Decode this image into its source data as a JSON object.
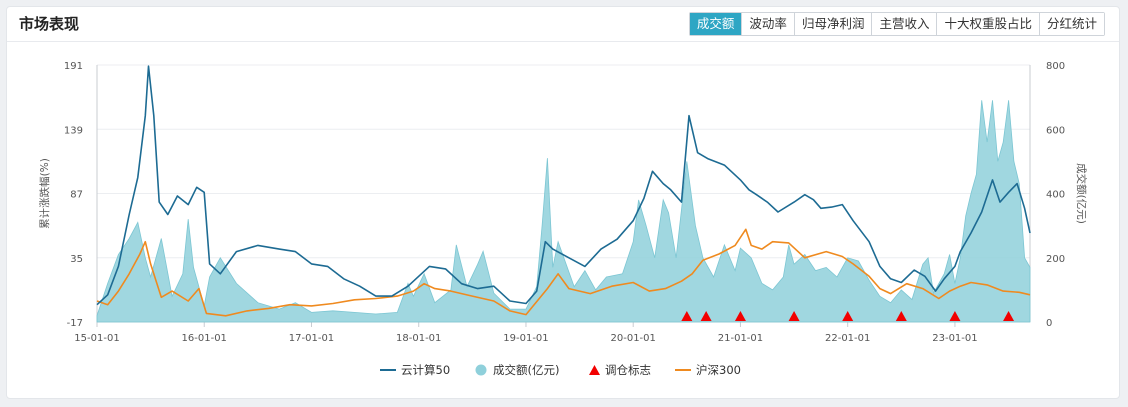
{
  "header": {
    "title": "市场表现",
    "tabs": [
      "成交额",
      "波动率",
      "归母净利润",
      "主营收入",
      "十大权重股占比",
      "分红统计"
    ],
    "active_tab": 0
  },
  "colors": {
    "cloud": "#1d6b93",
    "hs300": "#ef8a1f",
    "volume_fill": "#8fd0db",
    "marker": "#f20000",
    "active_tab": "#2ea6c4"
  },
  "chart_data": {
    "type": "line",
    "title": "",
    "ylabel": "累计涨跌幅(%)",
    "y2label": "成交额(亿元)",
    "ylim": [
      -17,
      191
    ],
    "y_ticks": [
      "191",
      "139",
      "87",
      "35",
      "-17"
    ],
    "y2lim": [
      0,
      800
    ],
    "y2_ticks": [
      "800",
      "600",
      "400",
      "200",
      "0"
    ],
    "xlim": [
      2015.0,
      2023.7
    ],
    "x_ticks": [
      {
        "x": 2015.0,
        "label": "15-01-01"
      },
      {
        "x": 2016.0,
        "label": "16-01-01"
      },
      {
        "x": 2017.0,
        "label": "17-01-01"
      },
      {
        "x": 2018.0,
        "label": "18-01-01"
      },
      {
        "x": 2019.0,
        "label": "19-01-01"
      },
      {
        "x": 2020.0,
        "label": "20-01-01"
      },
      {
        "x": 2021.0,
        "label": "21-01-01"
      },
      {
        "x": 2022.0,
        "label": "22-01-01"
      },
      {
        "x": 2023.0,
        "label": "23-01-01"
      }
    ],
    "legend": [
      "云计算50",
      "成交额(亿元)",
      "调仓标志",
      "沪深300"
    ],
    "series": [
      {
        "name": "云计算50",
        "axis": "left",
        "points": [
          [
            2015.0,
            -3
          ],
          [
            2015.1,
            5
          ],
          [
            2015.2,
            28
          ],
          [
            2015.3,
            70
          ],
          [
            2015.38,
            100
          ],
          [
            2015.45,
            150
          ],
          [
            2015.48,
            190
          ],
          [
            2015.53,
            150
          ],
          [
            2015.58,
            80
          ],
          [
            2015.66,
            70
          ],
          [
            2015.75,
            85
          ],
          [
            2015.85,
            78
          ],
          [
            2015.93,
            92
          ],
          [
            2016.0,
            88
          ],
          [
            2016.05,
            30
          ],
          [
            2016.15,
            22
          ],
          [
            2016.3,
            40
          ],
          [
            2016.5,
            45
          ],
          [
            2016.7,
            42
          ],
          [
            2016.85,
            40
          ],
          [
            2017.0,
            30
          ],
          [
            2017.15,
            28
          ],
          [
            2017.3,
            18
          ],
          [
            2017.45,
            12
          ],
          [
            2017.6,
            4
          ],
          [
            2017.75,
            4
          ],
          [
            2017.9,
            12
          ],
          [
            2018.0,
            20
          ],
          [
            2018.1,
            28
          ],
          [
            2018.25,
            26
          ],
          [
            2018.4,
            14
          ],
          [
            2018.55,
            10
          ],
          [
            2018.7,
            12
          ],
          [
            2018.85,
            0
          ],
          [
            2019.0,
            -2
          ],
          [
            2019.1,
            8
          ],
          [
            2019.18,
            48
          ],
          [
            2019.25,
            42
          ],
          [
            2019.4,
            35
          ],
          [
            2019.55,
            28
          ],
          [
            2019.7,
            42
          ],
          [
            2019.85,
            50
          ],
          [
            2020.0,
            65
          ],
          [
            2020.1,
            83
          ],
          [
            2020.18,
            105
          ],
          [
            2020.28,
            95
          ],
          [
            2020.35,
            90
          ],
          [
            2020.45,
            80
          ],
          [
            2020.52,
            150
          ],
          [
            2020.6,
            120
          ],
          [
            2020.7,
            115
          ],
          [
            2020.85,
            110
          ],
          [
            2021.0,
            98
          ],
          [
            2021.08,
            90
          ],
          [
            2021.15,
            86
          ],
          [
            2021.25,
            80
          ],
          [
            2021.35,
            72
          ],
          [
            2021.5,
            80
          ],
          [
            2021.6,
            86
          ],
          [
            2021.68,
            82
          ],
          [
            2021.75,
            75
          ],
          [
            2021.85,
            76
          ],
          [
            2021.95,
            78
          ],
          [
            2022.05,
            65
          ],
          [
            2022.2,
            48
          ],
          [
            2022.3,
            28
          ],
          [
            2022.4,
            18
          ],
          [
            2022.5,
            15
          ],
          [
            2022.62,
            25
          ],
          [
            2022.72,
            20
          ],
          [
            2022.82,
            8
          ],
          [
            2022.9,
            18
          ],
          [
            2023.0,
            28
          ],
          [
            2023.05,
            40
          ],
          [
            2023.15,
            55
          ],
          [
            2023.25,
            72
          ],
          [
            2023.35,
            98
          ],
          [
            2023.42,
            80
          ],
          [
            2023.5,
            88
          ],
          [
            2023.58,
            95
          ],
          [
            2023.65,
            75
          ],
          [
            2023.7,
            55
          ]
        ]
      },
      {
        "name": "沪深300",
        "axis": "left",
        "points": [
          [
            2015.0,
            0
          ],
          [
            2015.1,
            -3
          ],
          [
            2015.2,
            8
          ],
          [
            2015.3,
            22
          ],
          [
            2015.4,
            38
          ],
          [
            2015.45,
            48
          ],
          [
            2015.5,
            30
          ],
          [
            2015.6,
            3
          ],
          [
            2015.7,
            8
          ],
          [
            2015.85,
            0
          ],
          [
            2015.95,
            10
          ],
          [
            2016.02,
            -10
          ],
          [
            2016.2,
            -12
          ],
          [
            2016.4,
            -8
          ],
          [
            2016.6,
            -6
          ],
          [
            2016.8,
            -3
          ],
          [
            2017.0,
            -4
          ],
          [
            2017.2,
            -2
          ],
          [
            2017.4,
            1
          ],
          [
            2017.6,
            2
          ],
          [
            2017.8,
            4
          ],
          [
            2017.95,
            8
          ],
          [
            2018.05,
            14
          ],
          [
            2018.15,
            10
          ],
          [
            2018.3,
            8
          ],
          [
            2018.5,
            4
          ],
          [
            2018.7,
            0
          ],
          [
            2018.85,
            -8
          ],
          [
            2019.0,
            -11
          ],
          [
            2019.2,
            10
          ],
          [
            2019.3,
            22
          ],
          [
            2019.4,
            10
          ],
          [
            2019.6,
            6
          ],
          [
            2019.8,
            12
          ],
          [
            2020.0,
            15
          ],
          [
            2020.15,
            8
          ],
          [
            2020.3,
            10
          ],
          [
            2020.45,
            16
          ],
          [
            2020.55,
            22
          ],
          [
            2020.65,
            33
          ],
          [
            2020.8,
            38
          ],
          [
            2020.95,
            45
          ],
          [
            2021.05,
            58
          ],
          [
            2021.1,
            45
          ],
          [
            2021.2,
            42
          ],
          [
            2021.3,
            48
          ],
          [
            2021.45,
            47
          ],
          [
            2021.6,
            35
          ],
          [
            2021.8,
            40
          ],
          [
            2021.95,
            36
          ],
          [
            2022.05,
            30
          ],
          [
            2022.2,
            20
          ],
          [
            2022.3,
            10
          ],
          [
            2022.4,
            6
          ],
          [
            2022.55,
            14
          ],
          [
            2022.7,
            10
          ],
          [
            2022.85,
            2
          ],
          [
            2022.95,
            8
          ],
          [
            2023.05,
            12
          ],
          [
            2023.15,
            15
          ],
          [
            2023.3,
            13
          ],
          [
            2023.45,
            8
          ],
          [
            2023.6,
            7
          ],
          [
            2023.7,
            5
          ]
        ]
      },
      {
        "name": "成交额(亿元)",
        "axis": "right",
        "type": "area",
        "points": [
          [
            2015.0,
            20
          ],
          [
            2015.1,
            120
          ],
          [
            2015.2,
            210
          ],
          [
            2015.3,
            260
          ],
          [
            2015.38,
            310
          ],
          [
            2015.45,
            200
          ],
          [
            2015.5,
            140
          ],
          [
            2015.6,
            260
          ],
          [
            2015.7,
            80
          ],
          [
            2015.8,
            150
          ],
          [
            2015.85,
            320
          ],
          [
            2015.9,
            170
          ],
          [
            2016.0,
            50
          ],
          [
            2016.05,
            140
          ],
          [
            2016.15,
            200
          ],
          [
            2016.3,
            120
          ],
          [
            2016.5,
            60
          ],
          [
            2016.7,
            40
          ],
          [
            2016.85,
            60
          ],
          [
            2017.0,
            30
          ],
          [
            2017.2,
            35
          ],
          [
            2017.4,
            30
          ],
          [
            2017.6,
            25
          ],
          [
            2017.8,
            30
          ],
          [
            2017.9,
            120
          ],
          [
            2017.95,
            80
          ],
          [
            2018.05,
            150
          ],
          [
            2018.15,
            60
          ],
          [
            2018.3,
            100
          ],
          [
            2018.35,
            240
          ],
          [
            2018.45,
            110
          ],
          [
            2018.55,
            180
          ],
          [
            2018.6,
            220
          ],
          [
            2018.7,
            90
          ],
          [
            2018.85,
            40
          ],
          [
            2019.0,
            40
          ],
          [
            2019.1,
            110
          ],
          [
            2019.15,
            300
          ],
          [
            2019.2,
            510
          ],
          [
            2019.25,
            170
          ],
          [
            2019.3,
            250
          ],
          [
            2019.45,
            110
          ],
          [
            2019.55,
            160
          ],
          [
            2019.65,
            100
          ],
          [
            2019.75,
            140
          ],
          [
            2019.9,
            150
          ],
          [
            2020.0,
            250
          ],
          [
            2020.05,
            380
          ],
          [
            2020.12,
            300
          ],
          [
            2020.2,
            200
          ],
          [
            2020.28,
            380
          ],
          [
            2020.33,
            340
          ],
          [
            2020.4,
            200
          ],
          [
            2020.45,
            350
          ],
          [
            2020.5,
            500
          ],
          [
            2020.58,
            300
          ],
          [
            2020.65,
            200
          ],
          [
            2020.75,
            140
          ],
          [
            2020.85,
            240
          ],
          [
            2020.95,
            160
          ],
          [
            2021.0,
            230
          ],
          [
            2021.1,
            200
          ],
          [
            2021.2,
            120
          ],
          [
            2021.3,
            100
          ],
          [
            2021.4,
            140
          ],
          [
            2021.45,
            240
          ],
          [
            2021.5,
            180
          ],
          [
            2021.6,
            210
          ],
          [
            2021.7,
            160
          ],
          [
            2021.8,
            170
          ],
          [
            2021.9,
            140
          ],
          [
            2022.0,
            200
          ],
          [
            2022.1,
            190
          ],
          [
            2022.2,
            130
          ],
          [
            2022.3,
            80
          ],
          [
            2022.4,
            60
          ],
          [
            2022.5,
            100
          ],
          [
            2022.6,
            70
          ],
          [
            2022.7,
            180
          ],
          [
            2022.75,
            200
          ],
          [
            2022.8,
            90
          ],
          [
            2022.9,
            150
          ],
          [
            2022.95,
            210
          ],
          [
            2023.0,
            120
          ],
          [
            2023.05,
            200
          ],
          [
            2023.1,
            330
          ],
          [
            2023.15,
            400
          ],
          [
            2023.2,
            460
          ],
          [
            2023.25,
            690
          ],
          [
            2023.3,
            560
          ],
          [
            2023.35,
            690
          ],
          [
            2023.4,
            500
          ],
          [
            2023.45,
            560
          ],
          [
            2023.5,
            690
          ],
          [
            2023.55,
            500
          ],
          [
            2023.6,
            430
          ],
          [
            2023.65,
            200
          ],
          [
            2023.7,
            170
          ]
        ]
      },
      {
        "name": "调仓标志",
        "type": "marker",
        "points": [
          [
            2020.5,
            0
          ],
          [
            2020.68,
            0
          ],
          [
            2021.0,
            0
          ],
          [
            2021.5,
            0
          ],
          [
            2022.0,
            0
          ],
          [
            2022.5,
            0
          ],
          [
            2023.0,
            0
          ],
          [
            2023.5,
            0
          ]
        ]
      }
    ]
  }
}
